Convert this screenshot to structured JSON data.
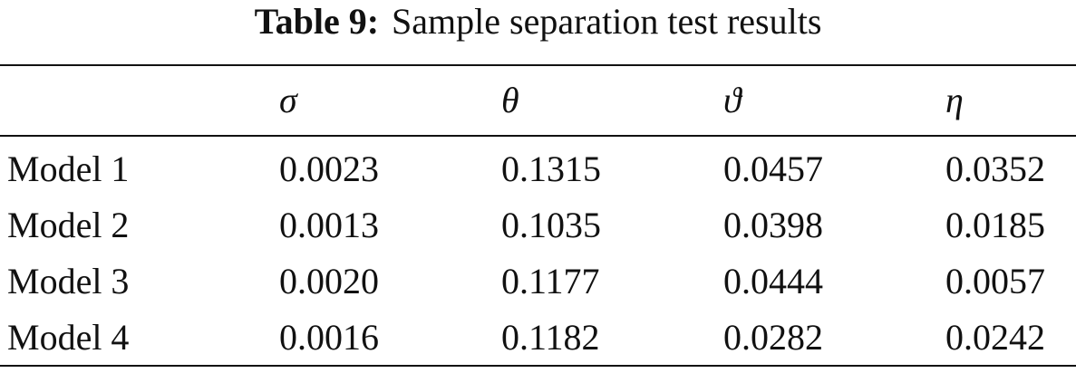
{
  "caption": {
    "label": "Table 9:",
    "text": "Sample separation test results"
  },
  "table": {
    "header": [
      "σ",
      "θ",
      "ϑ",
      "η"
    ],
    "rows": [
      [
        "Model 1",
        "0.0023",
        "0.1315",
        "0.0457",
        "0.0352"
      ],
      [
        "Model 2",
        "0.0013",
        "0.1035",
        "0.0398",
        "0.0185"
      ],
      [
        "Model 3",
        "0.0020",
        "0.1177",
        "0.0444",
        "0.0057"
      ],
      [
        "Model 4",
        "0.0016",
        "0.1182",
        "0.0282",
        "0.0242"
      ]
    ]
  }
}
